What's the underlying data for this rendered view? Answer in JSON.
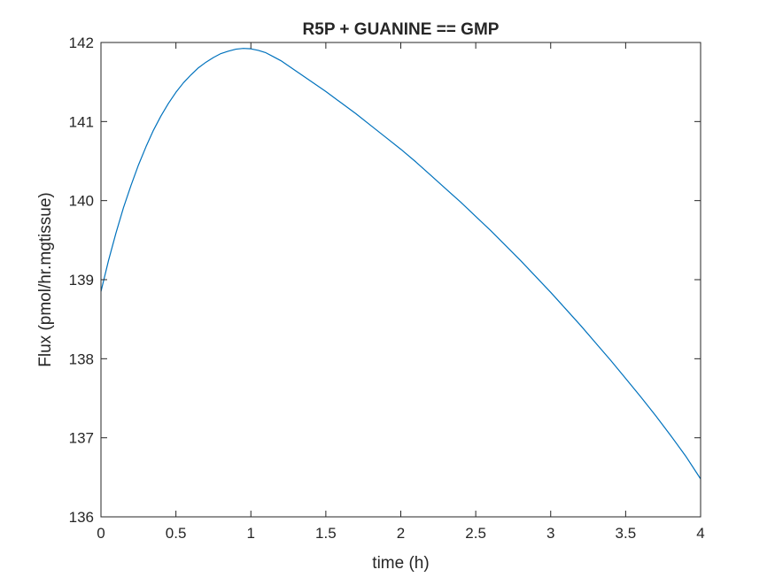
{
  "chart_data": {
    "type": "line",
    "title": "R5P + GUANINE == GMP",
    "xlabel": "time (h)",
    "ylabel": "Flux (pmol/hr.mgtissue)",
    "xlim": [
      0,
      4
    ],
    "ylim": [
      136,
      142
    ],
    "xticks": [
      0,
      0.5,
      1,
      1.5,
      2,
      2.5,
      3,
      3.5,
      4
    ],
    "xtick_labels": [
      "0",
      "0.5",
      "1",
      "1.5",
      "2",
      "2.5",
      "3",
      "3.5",
      "4"
    ],
    "yticks": [
      136,
      137,
      138,
      139,
      140,
      141,
      142
    ],
    "ytick_labels": [
      "136",
      "137",
      "138",
      "139",
      "140",
      "141",
      "142"
    ],
    "grid": false,
    "legend": "none",
    "series": [
      {
        "color": "#0072BD",
        "x": [
          0,
          0.05,
          0.1,
          0.15,
          0.2,
          0.25,
          0.3,
          0.35,
          0.4,
          0.45,
          0.5,
          0.55,
          0.6,
          0.65,
          0.7,
          0.75,
          0.8,
          0.85,
          0.9,
          0.95,
          1.0,
          1.05,
          1.1,
          1.15,
          1.2,
          1.3,
          1.4,
          1.5,
          1.6,
          1.7,
          1.8,
          1.9,
          2.0,
          2.1,
          2.2,
          2.3,
          2.4,
          2.5,
          2.6,
          2.7,
          2.8,
          2.9,
          3.0,
          3.1,
          3.2,
          3.3,
          3.4,
          3.5,
          3.6,
          3.7,
          3.8,
          3.9,
          4.0
        ],
        "y": [
          138.85,
          139.24,
          139.59,
          139.91,
          140.19,
          140.45,
          140.68,
          140.89,
          141.07,
          141.23,
          141.37,
          141.49,
          141.59,
          141.68,
          141.75,
          141.81,
          141.86,
          141.89,
          141.915,
          141.925,
          141.92,
          141.9,
          141.87,
          141.82,
          141.77,
          141.64,
          141.51,
          141.38,
          141.24,
          141.1,
          140.95,
          140.8,
          140.65,
          140.49,
          140.32,
          140.15,
          139.98,
          139.8,
          139.62,
          139.43,
          139.24,
          139.04,
          138.84,
          138.63,
          138.42,
          138.2,
          137.98,
          137.75,
          137.52,
          137.28,
          137.03,
          136.77,
          136.48
        ]
      }
    ]
  }
}
